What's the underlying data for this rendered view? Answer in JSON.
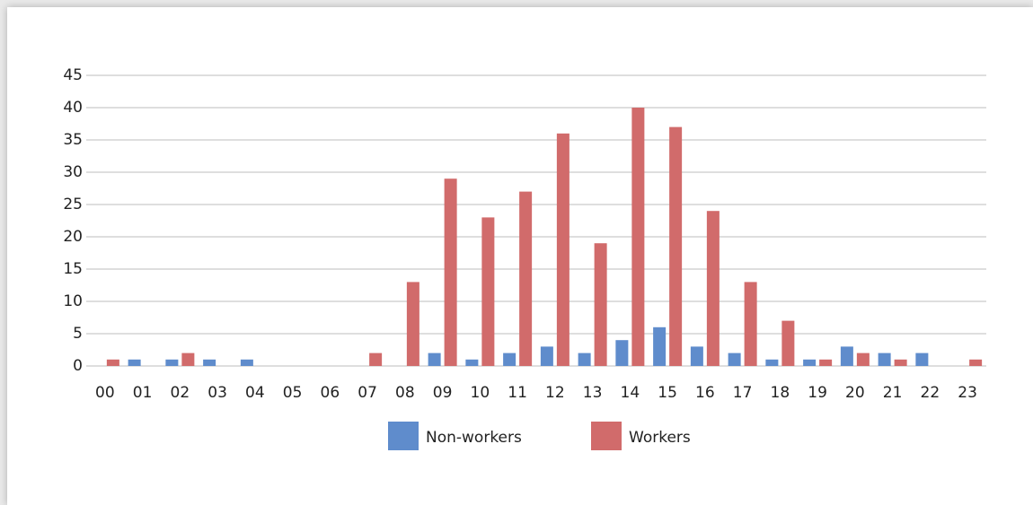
{
  "chart_data": {
    "type": "bar",
    "categories": [
      "00",
      "01",
      "02",
      "03",
      "04",
      "05",
      "06",
      "07",
      "08",
      "09",
      "10",
      "11",
      "12",
      "13",
      "14",
      "15",
      "16",
      "17",
      "18",
      "19",
      "20",
      "21",
      "22",
      "23"
    ],
    "series": [
      {
        "name": "Non-workers",
        "color": "#5f8ccc",
        "values": [
          0,
          1,
          1,
          1,
          1,
          0,
          0,
          0,
          0,
          2,
          1,
          2,
          3,
          2,
          4,
          6,
          3,
          2,
          1,
          1,
          3,
          2,
          2,
          0
        ]
      },
      {
        "name": "Workers",
        "color": "#d16b6b",
        "values": [
          1,
          0,
          2,
          0,
          0,
          0,
          0,
          2,
          13,
          29,
          23,
          27,
          36,
          19,
          40,
          37,
          24,
          13,
          7,
          1,
          2,
          1,
          0,
          1
        ]
      }
    ],
    "ylim": [
      0,
      45
    ],
    "yticks": [
      0,
      5,
      10,
      15,
      20,
      25,
      30,
      35,
      40,
      45
    ],
    "grid": true
  }
}
